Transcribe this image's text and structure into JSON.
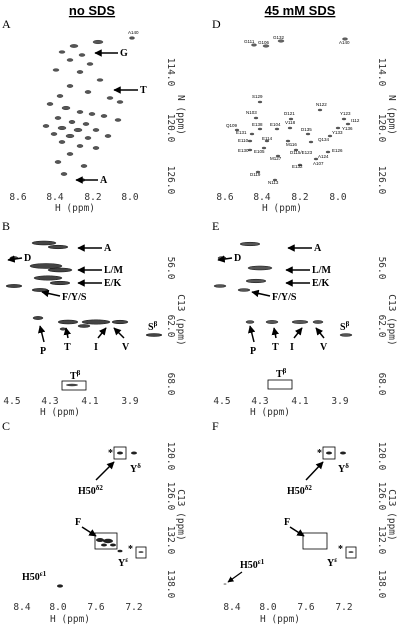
{
  "figure": {
    "col_left_header": "no SDS",
    "col_right_header": "45 mM SDS",
    "panels": [
      {
        "id": "A",
        "label": "A",
        "xlabel": "H (ppm)",
        "ylabel": "N (ppm)",
        "xticks": [
          "8.6",
          "8.4",
          "8.2",
          "8.0"
        ],
        "yticks": [
          "114.0",
          "120.0",
          "126.0"
        ],
        "annotations": [
          {
            "text": "G"
          },
          {
            "text": "T"
          },
          {
            "text": "A"
          }
        ]
      },
      {
        "id": "B",
        "label": "B",
        "xlabel": "H (ppm)",
        "ylabel": "C13 (ppm)",
        "xticks": [
          "4.5",
          "4.3",
          "4.1",
          "3.9"
        ],
        "yticks": [
          "56.0",
          "62.0",
          "68.0"
        ],
        "annotations": [
          {
            "text": "A"
          },
          {
            "text": "D"
          },
          {
            "text": "L/M"
          },
          {
            "text": "E/K"
          },
          {
            "text": "F/Y/S"
          },
          {
            "text": "S",
            "sup": "β"
          },
          {
            "text": "P"
          },
          {
            "text": "T"
          },
          {
            "text": "I"
          },
          {
            "text": "V"
          },
          {
            "text": "T",
            "sup": "β"
          }
        ]
      },
      {
        "id": "C",
        "label": "C",
        "xlabel": "H (ppm)",
        "ylabel": "C13 (ppm)",
        "xticks": [
          "8.4",
          "8.0",
          "7.6",
          "7.2"
        ],
        "yticks": [
          "120.0",
          "126.0",
          "132.0",
          "138.0"
        ],
        "annotations": [
          {
            "text": "*"
          },
          {
            "text": "Y",
            "sup": "δ"
          },
          {
            "text": "H50",
            "sup": "δ2"
          },
          {
            "text": "F"
          },
          {
            "text": "*"
          },
          {
            "text": "Y",
            "sup": "ε"
          },
          {
            "text": "H50",
            "sup": "ε1"
          }
        ]
      },
      {
        "id": "D",
        "label": "D",
        "xlabel": "H (ppm)",
        "ylabel": "N (ppm)",
        "xticks": [
          "8.6",
          "8.4",
          "8.2",
          "8.0"
        ],
        "yticks": [
          "114.0",
          "120.0",
          "126.0"
        ],
        "residues": [
          "G111",
          "G106",
          "G132",
          "A140",
          "S129",
          "D121",
          "N122",
          "N103",
          "Y123",
          "I112",
          "E138",
          "E104",
          "V118",
          "Q109",
          "Y136",
          "E131",
          "D135",
          "Y133",
          "E110",
          "E114",
          "M116",
          "Q134",
          "E130",
          "E105",
          "D115/E123",
          "E126",
          "M127",
          "A124",
          "E132",
          "A107",
          "D119",
          "N113"
        ]
      },
      {
        "id": "E",
        "label": "E",
        "xlabel": "H (ppm)",
        "ylabel": "C13 (ppm)",
        "xticks": [
          "4.5",
          "4.3",
          "4.1",
          "3.9"
        ],
        "yticks": [
          "56.0",
          "62.0",
          "68.0"
        ],
        "annotations": [
          {
            "text": "A"
          },
          {
            "text": "D"
          },
          {
            "text": "L/M"
          },
          {
            "text": "E/K"
          },
          {
            "text": "F/Y/S"
          },
          {
            "text": "S",
            "sup": "β"
          },
          {
            "text": "P"
          },
          {
            "text": "T"
          },
          {
            "text": "I"
          },
          {
            "text": "V"
          },
          {
            "text": "T",
            "sup": "β"
          }
        ]
      },
      {
        "id": "F",
        "label": "F",
        "xlabel": "H (ppm)",
        "ylabel": "C13 (ppm)",
        "xticks": [
          "8.4",
          "8.0",
          "7.6",
          "7.2"
        ],
        "yticks": [
          "120.0",
          "126.0",
          "132.0",
          "138.0"
        ],
        "annotations": [
          {
            "text": "*"
          },
          {
            "text": "Y",
            "sup": "δ"
          },
          {
            "text": "H50",
            "sup": "δ2"
          },
          {
            "text": "F"
          },
          {
            "text": "*"
          },
          {
            "text": "Y",
            "sup": "ε"
          },
          {
            "text": "H50",
            "sup": "ε1"
          }
        ]
      }
    ]
  }
}
